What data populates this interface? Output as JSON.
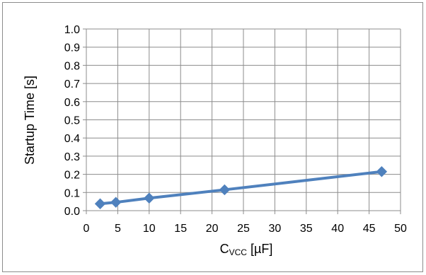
{
  "chart_data": {
    "type": "line",
    "title": "",
    "xlabel": {
      "main": "C",
      "sub": "VCC",
      "unit": " [µF]"
    },
    "ylabel": "Startup Time [s]",
    "xlim": [
      0,
      50
    ],
    "ylim": [
      0,
      1.0
    ],
    "x_ticks": [
      "0",
      "5",
      "10",
      "15",
      "20",
      "25",
      "30",
      "35",
      "40",
      "45",
      "50"
    ],
    "y_ticks": [
      "0.0",
      "0.1",
      "0.2",
      "0.3",
      "0.4",
      "0.5",
      "0.6",
      "0.7",
      "0.8",
      "0.9",
      "1.0"
    ],
    "grid": true,
    "legend": "none",
    "series": [
      {
        "x": [
          2.2,
          4.7,
          10,
          22,
          47
        ],
        "y": [
          0.038,
          0.046,
          0.069,
          0.115,
          0.215
        ],
        "color": "#4f81bd",
        "marker": "diamond"
      }
    ]
  }
}
